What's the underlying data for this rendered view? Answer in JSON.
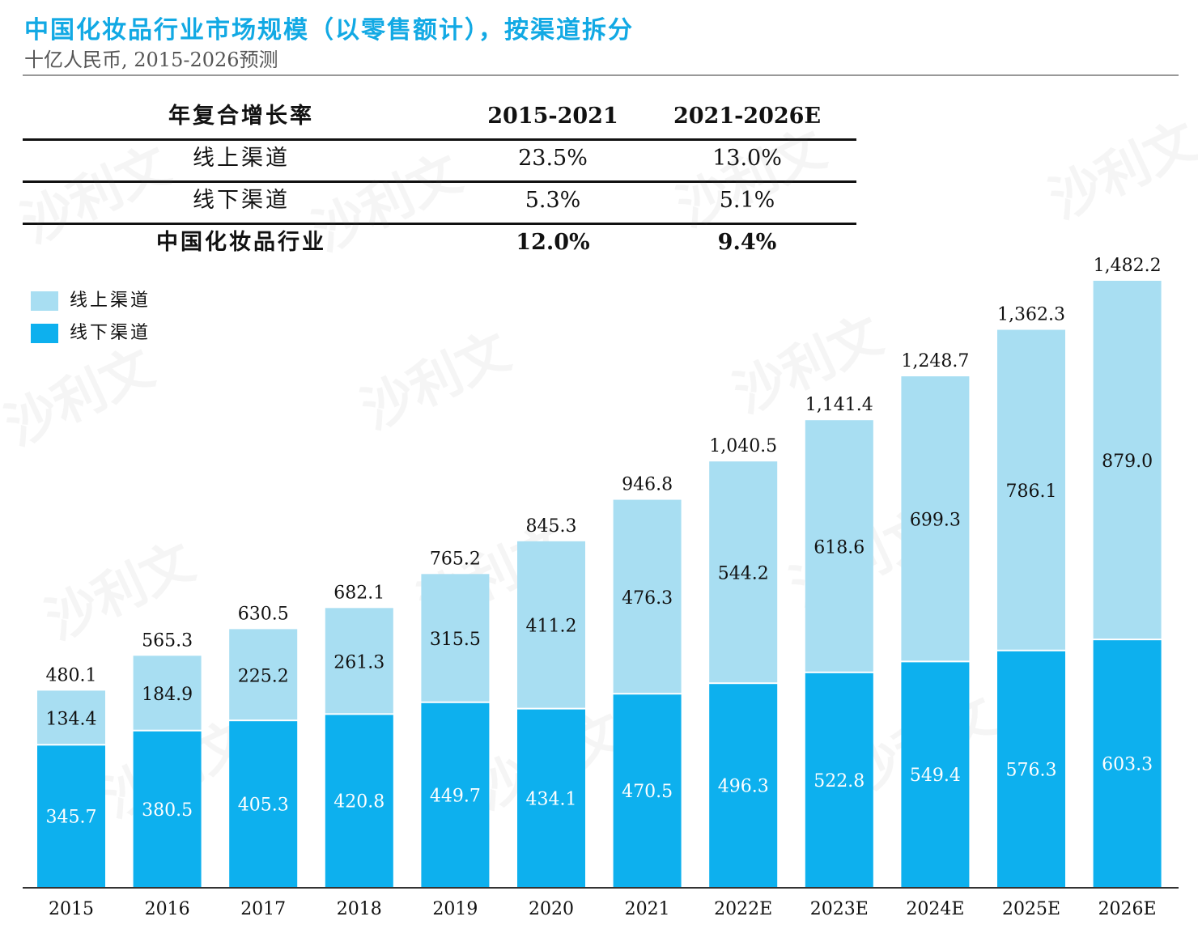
{
  "header": {
    "title": "中国化妆品行业市场规模（以零售额计），按渠道拆分",
    "subtitle": "十亿人民币, 2015-2026预测"
  },
  "cagr_table": {
    "headers": [
      "年复合增长率",
      "2015-2021",
      "2021-2026E"
    ],
    "rows": [
      {
        "label": "线上渠道",
        "v1": "23.5%",
        "v2": "13.0%"
      },
      {
        "label": "线下渠道",
        "v1": "5.3%",
        "v2": "5.1%"
      },
      {
        "label": "中国化妆品行业",
        "v1": "12.0%",
        "v2": "9.4%"
      }
    ]
  },
  "watermark": "沙利文",
  "colors": {
    "online": "#a8def2",
    "offline": "#0db0ee",
    "title": "#12a9e4"
  },
  "chart_data": {
    "type": "bar",
    "stacked": true,
    "categories": [
      "2015",
      "2016",
      "2017",
      "2018",
      "2019",
      "2020",
      "2021",
      "2022E",
      "2023E",
      "2024E",
      "2025E",
      "2026E"
    ],
    "series": [
      {
        "name": "线下渠道",
        "values": [
          345.7,
          380.5,
          405.3,
          420.8,
          449.7,
          434.1,
          470.5,
          496.3,
          522.8,
          549.4,
          576.3,
          603.3
        ]
      },
      {
        "name": "线上渠道",
        "values": [
          134.4,
          184.9,
          225.2,
          261.3,
          315.5,
          411.2,
          476.3,
          544.2,
          618.6,
          699.3,
          786.1,
          879.0
        ]
      }
    ],
    "totals": [
      "480.1",
      "565.3",
      "630.5",
      "682.1",
      "765.2",
      "845.3",
      "946.8",
      "1,040.5",
      "1,141.4",
      "1,248.7",
      "1,362.3",
      "1,482.2"
    ],
    "ylim": [
      0,
      1482.2
    ],
    "legend_position": "top-left",
    "grid": false
  }
}
